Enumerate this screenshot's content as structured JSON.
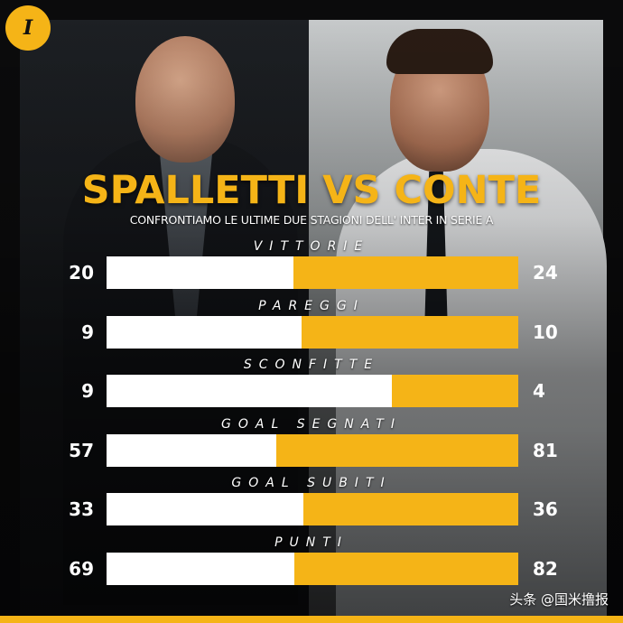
{
  "logo": {
    "icon": "inter-logo-icon",
    "glyph": "I",
    "color": "#f5b417"
  },
  "chart_data": {
    "type": "bar",
    "orientation": "horizontal-stacked-comparison",
    "title": "SPALLETTI VS CONTE",
    "subtitle": "CONFRONTIAMO LE ULTIME DUE STAGIONI DELL' INTER IN SERIE A",
    "categories": [
      "VITTORIE",
      "PAREGGI",
      "SCONFITTE",
      "GOAL SEGNATI",
      "GOAL SUBITI",
      "PUNTI"
    ],
    "series": [
      {
        "values": [
          20,
          9,
          9,
          57,
          33,
          69
        ]
      },
      {
        "values": [
          24,
          10,
          4,
          81,
          36,
          82
        ]
      }
    ],
    "colors": {
      "left": "#ffffff",
      "right": "#f5b417"
    },
    "grid": false
  },
  "watermark": "头条 @国米撸报"
}
